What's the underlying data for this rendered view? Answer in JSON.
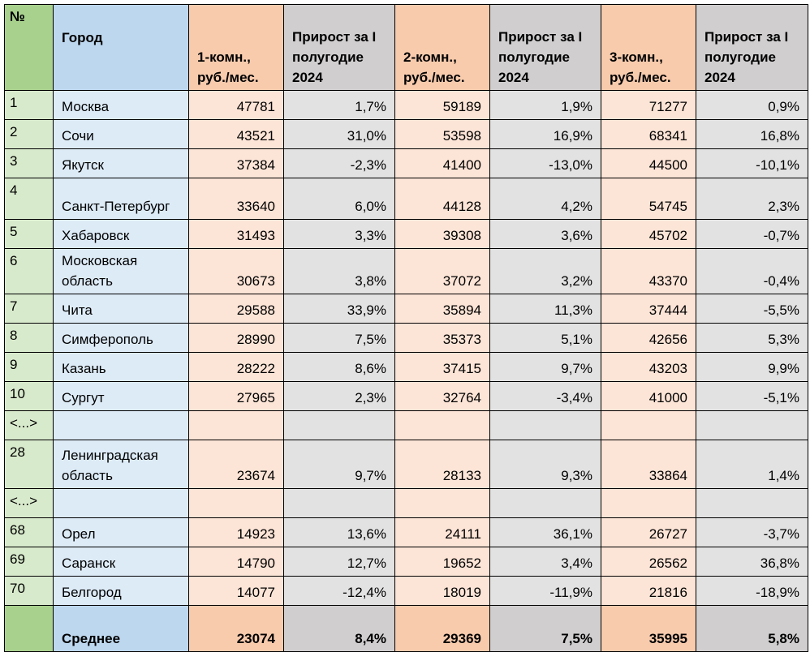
{
  "table": {
    "header": [
      "№",
      "Город",
      "1-комн., руб./мес.",
      "Прирост за I полугодие 2024",
      "2-комн., руб./мес.",
      "Прирост за I полугодие 2024",
      "3-комн., руб./мес.",
      "Прирост за I полугодие 2024"
    ],
    "rows": [
      [
        "1",
        "Москва",
        "47781",
        "1,7%",
        "59189",
        "1,9%",
        "71277",
        "0,9%"
      ],
      [
        "2",
        "Сочи",
        "43521",
        "31,0%",
        "53598",
        "16,9%",
        "68341",
        "16,8%"
      ],
      [
        "3",
        "Якутск",
        "37384",
        "-2,3%",
        "41400",
        "-13,0%",
        "44500",
        "-10,1%"
      ],
      [
        "4",
        "Санкт-Петербург",
        "33640",
        "6,0%",
        "44128",
        "4,2%",
        "54745",
        "2,3%"
      ],
      [
        "5",
        "Хабаровск",
        "31493",
        "3,3%",
        "39308",
        "3,6%",
        "45702",
        "-0,7%"
      ],
      [
        "6",
        "Московская область",
        "30673",
        "3,8%",
        "37072",
        "3,2%",
        "43370",
        "-0,4%"
      ],
      [
        "7",
        "Чита",
        "29588",
        "33,9%",
        "35894",
        "11,3%",
        "37444",
        "-5,5%"
      ],
      [
        "8",
        "Симферополь",
        "28990",
        "7,5%",
        "35373",
        "5,1%",
        "42656",
        "5,3%"
      ],
      [
        "9",
        "Казань",
        "28222",
        "8,6%",
        "37415",
        "9,7%",
        "43203",
        "9,9%"
      ],
      [
        "10",
        "Сургут",
        "27965",
        "2,3%",
        "32764",
        "-3,4%",
        "41000",
        "-5,1%"
      ],
      [
        "<...>"
      ],
      [
        "28",
        "Ленинградская область",
        "23674",
        "9,7%",
        "28133",
        "9,3%",
        "33864",
        "1,4%"
      ],
      [
        "<...>"
      ],
      [
        "68",
        "Орел",
        "14923",
        "13,6%",
        "24111",
        "36,1%",
        "26727",
        "-3,7%"
      ],
      [
        "69",
        "Саранск",
        "14790",
        "12,7%",
        "19652",
        "3,4%",
        "26562",
        "36,8%"
      ],
      [
        "70",
        "Белгород",
        "14077",
        "-12,4%",
        "18019",
        "-11,9%",
        "21816",
        "-18,9%"
      ]
    ],
    "footer": {
      "label": "Среднее",
      "values": [
        "23074",
        "8,4%",
        "29369",
        "7,5%",
        "35995",
        "5,8%"
      ]
    }
  }
}
